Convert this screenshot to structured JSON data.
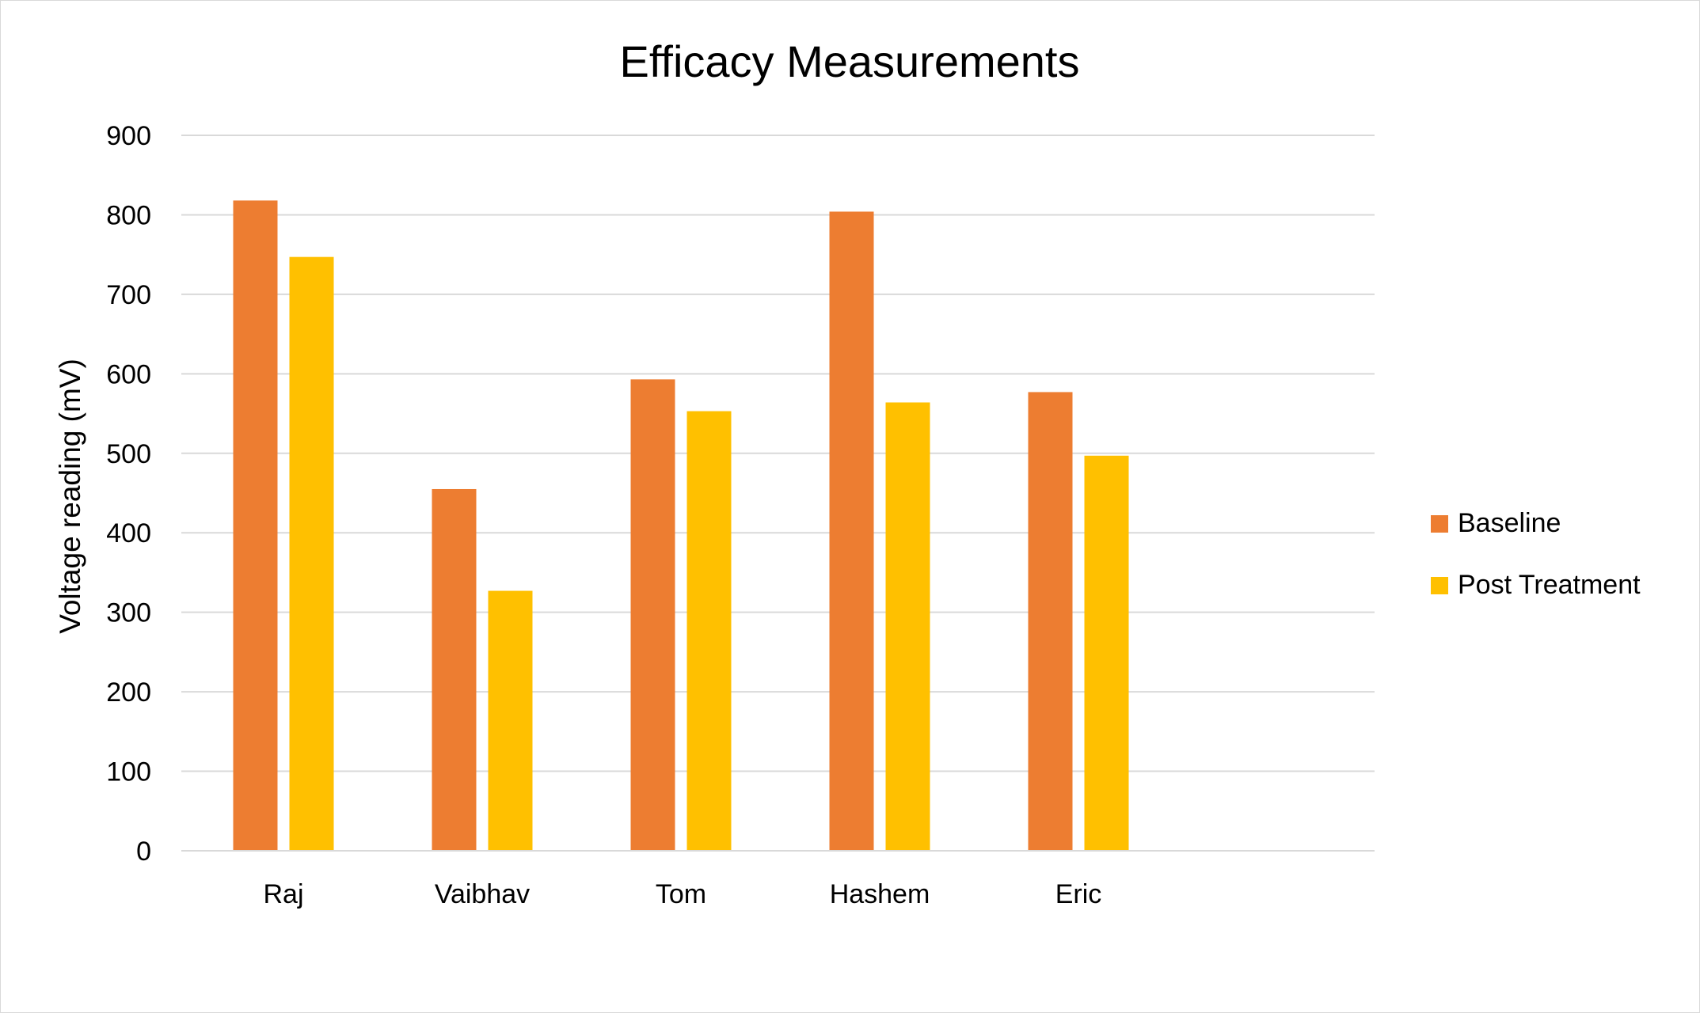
{
  "chart_data": {
    "type": "bar",
    "title": "Efficacy Measurements",
    "xlabel": "",
    "ylabel": "Voltage reading (mV)",
    "categories": [
      "Raj",
      "Vaibhav",
      "Tom",
      "Hashem",
      "Eric"
    ],
    "series": [
      {
        "name": "Baseline",
        "color": "#ED7D31",
        "values": [
          818,
          455,
          593,
          804,
          577
        ]
      },
      {
        "name": "Post Treatment",
        "color": "#FFC000",
        "values": [
          747,
          327,
          553,
          564,
          497
        ]
      }
    ],
    "ylim": [
      0,
      900
    ],
    "yticks": [
      0,
      100,
      200,
      300,
      400,
      500,
      600,
      700,
      800,
      900
    ],
    "grid": true,
    "gridline_color": "#d9d9d9",
    "legend_position": "right"
  }
}
